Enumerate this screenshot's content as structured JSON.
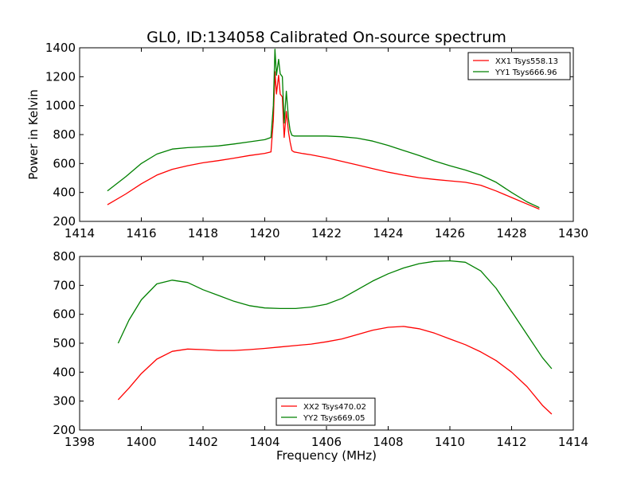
{
  "title": "GL0, ID:134058 Calibrated On-source spectrum",
  "chart_data": [
    {
      "type": "line",
      "title": "GL0, ID:134058 Calibrated On-source spectrum",
      "xlabel": "",
      "ylabel": "Power in Kelvin",
      "xlim": [
        1414,
        1430
      ],
      "ylim": [
        200,
        1400
      ],
      "xticks": [
        "1414",
        "1416",
        "1418",
        "1420",
        "1422",
        "1424",
        "1426",
        "1428",
        "1430"
      ],
      "yticks": [
        "200",
        "400",
        "600",
        "800",
        "1000",
        "1200",
        "1400"
      ],
      "legend_position": "top-right",
      "series": [
        {
          "name": "XX1 Tsys558.13",
          "color": "#ff0000",
          "x": [
            1414.9,
            1415.5,
            1416.0,
            1416.5,
            1417.0,
            1417.5,
            1418.0,
            1418.5,
            1419.0,
            1419.5,
            1420.0,
            1420.2,
            1420.28,
            1420.33,
            1420.38,
            1420.45,
            1420.5,
            1420.57,
            1420.63,
            1420.7,
            1420.77,
            1420.82,
            1420.88,
            1420.95,
            1421.05,
            1421.2,
            1421.5,
            1422.0,
            1422.5,
            1423.0,
            1423.5,
            1424.0,
            1424.5,
            1425.0,
            1425.5,
            1426.0,
            1426.5,
            1427.0,
            1427.5,
            1428.0,
            1428.5,
            1428.9
          ],
          "y": [
            315,
            390,
            460,
            520,
            560,
            585,
            605,
            620,
            637,
            655,
            670,
            680,
            900,
            1235,
            1080,
            1210,
            1080,
            1060,
            780,
            960,
            820,
            750,
            690,
            680,
            676,
            670,
            660,
            640,
            615,
            590,
            565,
            540,
            520,
            502,
            490,
            480,
            470,
            450,
            410,
            365,
            320,
            285
          ]
        },
        {
          "name": "YY1 Tsys666.96",
          "color": "#008000",
          "x": [
            1414.9,
            1415.5,
            1416.0,
            1416.5,
            1417.0,
            1417.5,
            1418.0,
            1418.5,
            1419.0,
            1419.5,
            1420.0,
            1420.2,
            1420.28,
            1420.33,
            1420.38,
            1420.45,
            1420.5,
            1420.57,
            1420.63,
            1420.7,
            1420.77,
            1420.82,
            1420.88,
            1420.95,
            1421.05,
            1421.2,
            1421.5,
            1422.0,
            1422.5,
            1423.0,
            1423.5,
            1424.0,
            1424.5,
            1425.0,
            1425.5,
            1426.0,
            1426.5,
            1427.0,
            1427.5,
            1428.0,
            1428.5,
            1428.9
          ],
          "y": [
            410,
            510,
            600,
            665,
            700,
            710,
            715,
            722,
            735,
            750,
            765,
            780,
            1000,
            1390,
            1210,
            1320,
            1220,
            1200,
            880,
            1100,
            910,
            830,
            795,
            790,
            790,
            790,
            790,
            790,
            785,
            775,
            755,
            725,
            690,
            655,
            618,
            585,
            555,
            520,
            470,
            400,
            335,
            295
          ]
        }
      ]
    },
    {
      "type": "line",
      "title": "",
      "xlabel": "Frequency (MHz)",
      "ylabel": "",
      "xlim": [
        1398,
        1414
      ],
      "ylim": [
        200,
        800
      ],
      "xticks": [
        "1398",
        "1400",
        "1402",
        "1404",
        "1406",
        "1408",
        "1410",
        "1412",
        "1414"
      ],
      "yticks": [
        "200",
        "300",
        "400",
        "500",
        "600",
        "700",
        "800"
      ],
      "legend_position": "bottom-center",
      "series": [
        {
          "name": "XX2 Tsys470.02",
          "color": "#ff0000",
          "x": [
            1399.25,
            1399.6,
            1400.0,
            1400.5,
            1401.0,
            1401.5,
            1402.0,
            1402.5,
            1403.0,
            1403.5,
            1404.0,
            1404.5,
            1405.0,
            1405.5,
            1406.0,
            1406.5,
            1407.0,
            1407.5,
            1408.0,
            1408.5,
            1409.0,
            1409.5,
            1410.0,
            1410.5,
            1411.0,
            1411.5,
            1412.0,
            1412.5,
            1413.0,
            1413.3
          ],
          "y": [
            305,
            345,
            395,
            445,
            472,
            480,
            478,
            475,
            475,
            478,
            482,
            487,
            492,
            497,
            505,
            515,
            530,
            545,
            555,
            558,
            550,
            535,
            515,
            495,
            470,
            440,
            400,
            350,
            285,
            255
          ]
        },
        {
          "name": "YY2 Tsys669.05",
          "color": "#008000",
          "x": [
            1399.25,
            1399.6,
            1400.0,
            1400.5,
            1401.0,
            1401.5,
            1402.0,
            1402.5,
            1403.0,
            1403.5,
            1404.0,
            1404.5,
            1405.0,
            1405.5,
            1406.0,
            1406.5,
            1407.0,
            1407.5,
            1408.0,
            1408.5,
            1409.0,
            1409.5,
            1410.0,
            1410.5,
            1411.0,
            1411.5,
            1412.0,
            1412.5,
            1413.0,
            1413.3
          ],
          "y": [
            500,
            580,
            650,
            705,
            718,
            710,
            685,
            665,
            645,
            630,
            622,
            620,
            620,
            625,
            635,
            655,
            685,
            715,
            740,
            760,
            775,
            783,
            785,
            780,
            750,
            690,
            610,
            530,
            450,
            412
          ]
        }
      ]
    }
  ]
}
